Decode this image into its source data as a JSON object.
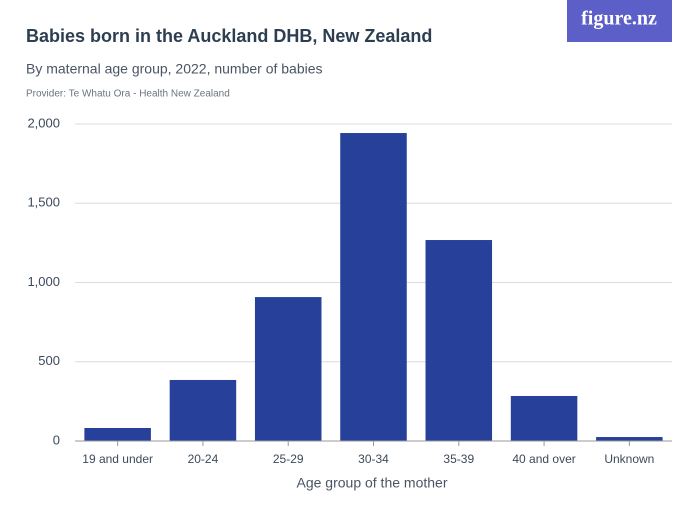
{
  "chart_data": {
    "type": "bar",
    "title": "Babies born in the Auckland DHB, New Zealand",
    "subtitle": "By maternal age group, 2022, number of babies",
    "provider": "Provider: Te Whatu Ora - Health New Zealand",
    "brand": "figure.nz",
    "x_label": "Age group of the mother",
    "categories": [
      "19 and under",
      "20-24",
      "25-29",
      "30-34",
      "35-39",
      "40 and over",
      "Unknown"
    ],
    "values": [
      82,
      385,
      908,
      1943,
      1268,
      284,
      25
    ],
    "color": "#27409a",
    "ylim": [
      0,
      2000
    ],
    "yticks": [
      0,
      500,
      {
        "value": 1000,
        "label": "1,000"
      },
      {
        "value": 1500,
        "label": "1,500"
      },
      {
        "value": 2000,
        "label": "2,000"
      }
    ],
    "grid": true
  }
}
